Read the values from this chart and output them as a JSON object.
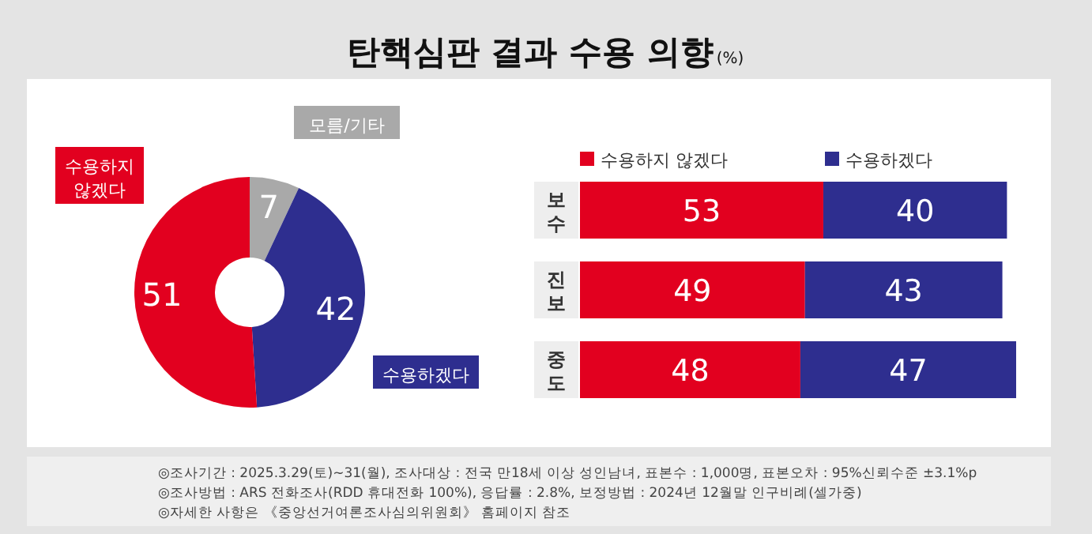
{
  "chart_data": [
    {
      "type": "donut",
      "title": "탄핵심판 결과 수용 의향(%)",
      "categories": [
        "모름/기타",
        "수용하겠다",
        "수용하지 않겠다"
      ],
      "values": [
        7,
        42,
        51
      ],
      "colors": [
        "#a9a9a9",
        "#2e2e8f",
        "#e2001f"
      ],
      "data_labels": true
    },
    {
      "type": "bar",
      "orientation": "horizontal",
      "stacked": true,
      "categories": [
        "보수",
        "진보",
        "중도"
      ],
      "series": [
        {
          "name": "수용하지 않겠다",
          "color": "#e2001f",
          "values": [
            53,
            49,
            48
          ]
        },
        {
          "name": "수용하겠다",
          "color": "#2e2e8f",
          "values": [
            40,
            43,
            47
          ]
        }
      ],
      "data_labels": true,
      "legend": "top",
      "annotations": [
        "◎조사기간 : 2025.3.29(토)~31(월), 조사대상 : 전국 만18세 이상 성인남녀, 표본수 : 1,000명, 표본오차 : 95%신뢰수준 ±3.1%p",
        "◎조사방법 : ARS 전화조사(RDD 휴대전화 100%), 응답률 : 2.8%, 보정방법 : 2024년 12월말 인구비례(셀가중)",
        "◎자세한 사항은 《중앙선거여론조사심의위원회》 홈페이지 참조"
      ]
    }
  ]
}
